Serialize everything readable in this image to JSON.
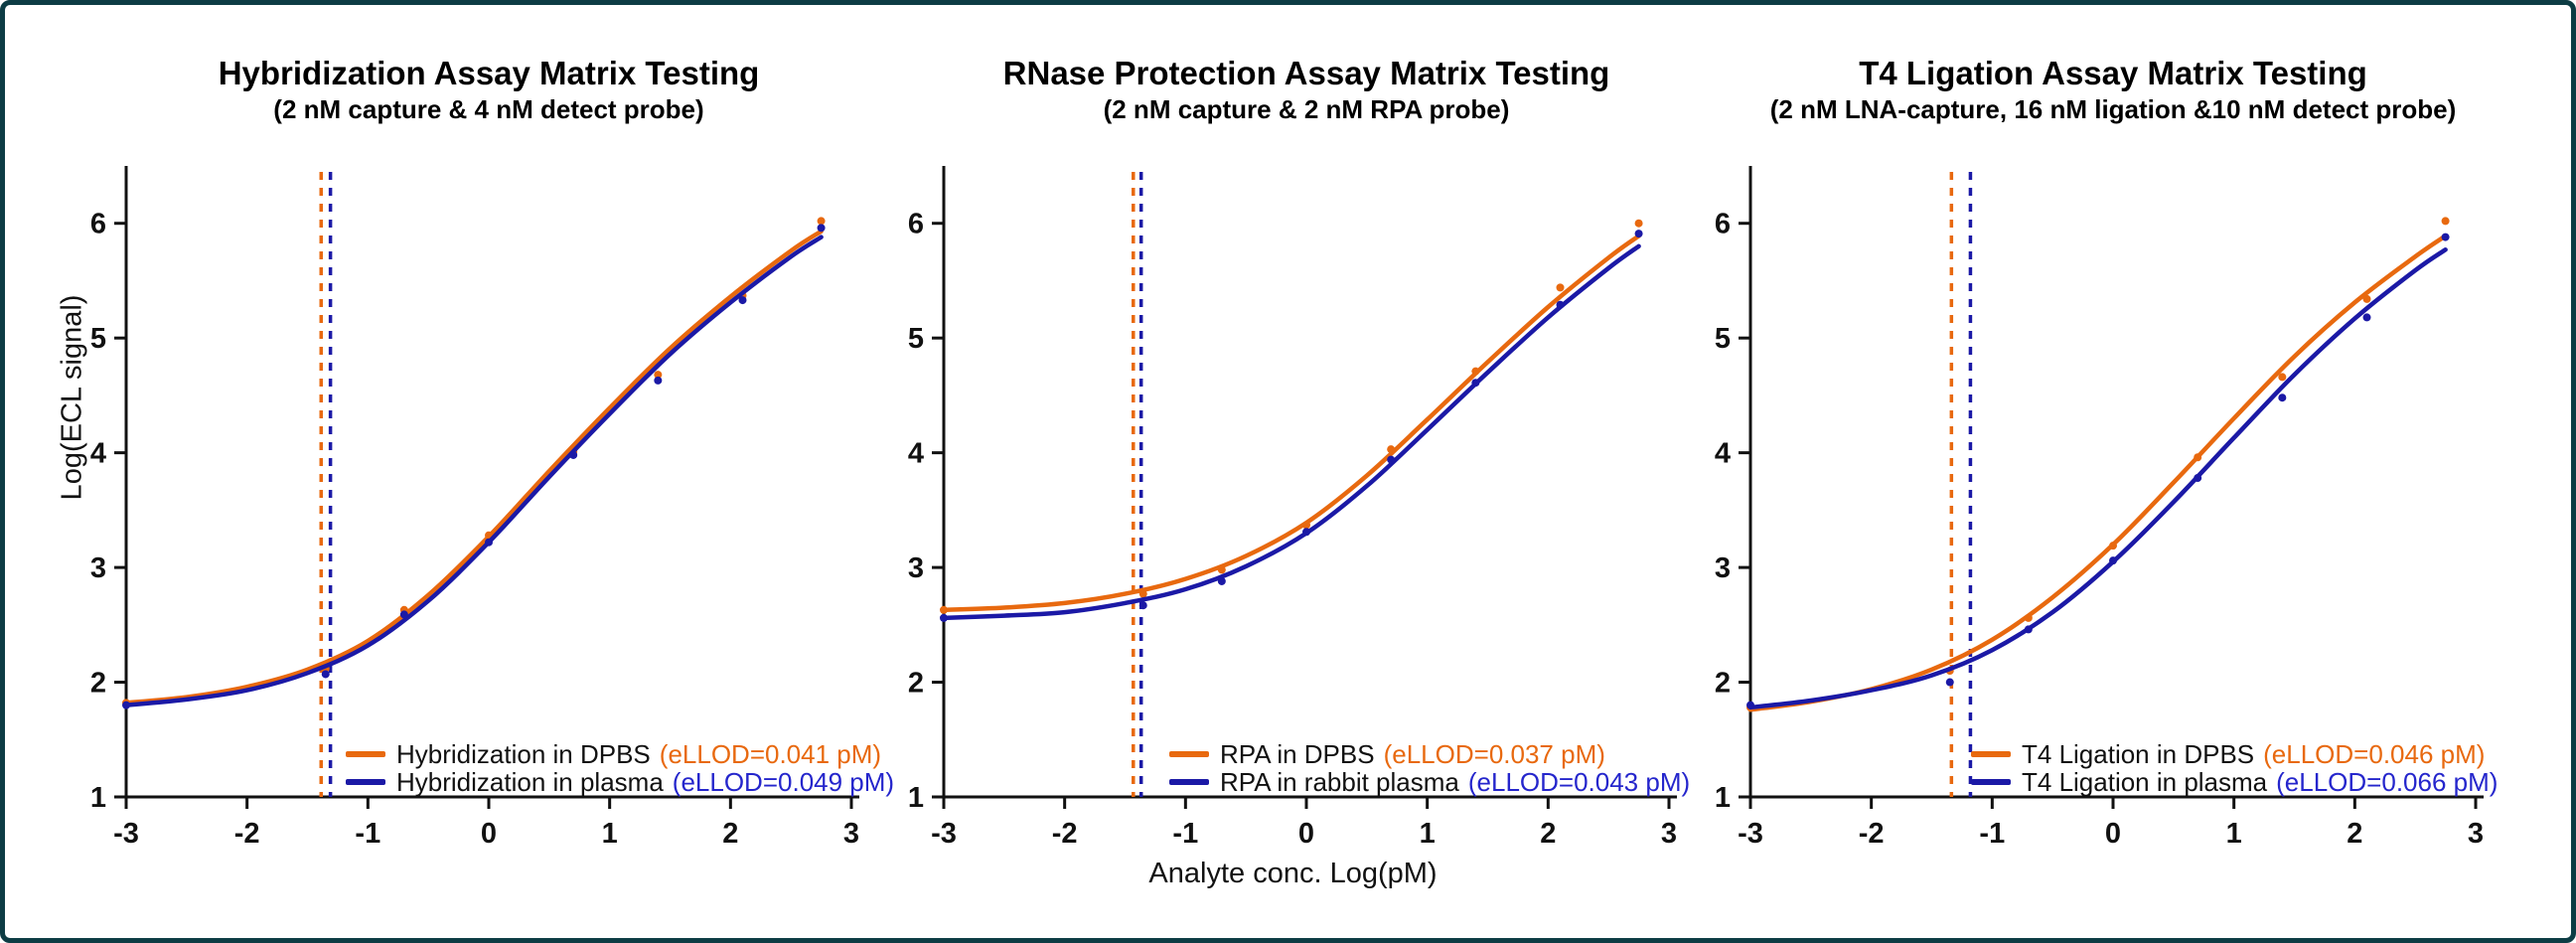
{
  "figure": {
    "border_color": "#0d3c44",
    "background": "#ffffff"
  },
  "colors": {
    "dpbs": "#E8690F",
    "plasma": "#1B19A6",
    "dpbs_text": "#E8690F",
    "plasma_text": "#2526CC",
    "axis": "#111111"
  },
  "axes": {
    "x_label": "Analyte conc. Log(pM)",
    "y_label": "Log(ECL signal)",
    "x_ticks": [
      -3,
      -2,
      -1,
      0,
      1,
      2,
      3
    ],
    "y_ticks": [
      1,
      2,
      3,
      4,
      5,
      6
    ],
    "x_range": [
      -3,
      3
    ],
    "y_range": [
      1,
      6.5
    ],
    "grid": false
  },
  "chart_data": [
    {
      "type": "line",
      "title": "Hybridization Assay Matrix Testing",
      "subtitle": "(2 nM capture & 4 nM detect probe)",
      "legend_position": "inside-bottom",
      "series": [
        {
          "name": "Hybridization in DPBS",
          "ellod_label": "(eLLOD=0.041 pM)",
          "ellod_pm": 0.041,
          "llod_log": -1.387,
          "color": "dpbs",
          "text_color": "dpbs_text",
          "scatter_x": [
            -3,
            -1.35,
            -0.7,
            0,
            0.7,
            1.4,
            2.1,
            2.75
          ],
          "scatter_y": [
            1.82,
            2.12,
            2.63,
            3.28,
            4.01,
            4.68,
            5.37,
            6.02
          ],
          "curve_x": [
            -3,
            -2.5,
            -2,
            -1.5,
            -1,
            -0.5,
            0,
            0.5,
            1,
            1.5,
            2,
            2.5,
            2.75
          ],
          "curve_y": [
            1.82,
            1.87,
            1.96,
            2.11,
            2.36,
            2.76,
            3.27,
            3.84,
            4.39,
            4.91,
            5.36,
            5.76,
            5.93
          ]
        },
        {
          "name": "Hybridization in plasma",
          "ellod_label": "(eLLOD=0.049 pM)",
          "ellod_pm": 0.049,
          "llod_log": -1.31,
          "color": "plasma",
          "text_color": "plasma_text",
          "scatter_x": [
            -3,
            -1.35,
            -0.7,
            0,
            0.7,
            1.4,
            2.1,
            2.75
          ],
          "scatter_y": [
            1.8,
            2.07,
            2.59,
            3.22,
            3.98,
            4.63,
            5.33,
            5.96
          ],
          "curve_x": [
            -3,
            -2.5,
            -2,
            -1.5,
            -1,
            -0.5,
            0,
            0.5,
            1,
            1.5,
            2,
            2.5,
            2.75
          ],
          "curve_y": [
            1.8,
            1.85,
            1.93,
            2.08,
            2.32,
            2.71,
            3.22,
            3.79,
            4.34,
            4.86,
            5.31,
            5.71,
            5.88
          ]
        }
      ]
    },
    {
      "type": "line",
      "title": "RNase Protection Assay Matrix Testing",
      "subtitle": "(2 nM capture & 2 nM RPA probe)",
      "legend_position": "inside-bottom",
      "series": [
        {
          "name": "RPA in DPBS",
          "ellod_label": "(eLLOD=0.037 pM)",
          "ellod_pm": 0.037,
          "llod_log": -1.432,
          "color": "dpbs",
          "text_color": "dpbs_text",
          "scatter_x": [
            -3,
            -1.35,
            -0.7,
            0,
            0.7,
            1.4,
            2.1,
            2.75
          ],
          "scatter_y": [
            2.63,
            2.77,
            2.98,
            3.37,
            4.03,
            4.71,
            5.44,
            6.0
          ],
          "curve_x": [
            -3,
            -2.5,
            -2,
            -1.5,
            -1,
            -0.5,
            0,
            0.5,
            1,
            1.5,
            2,
            2.5,
            2.75
          ],
          "curve_y": [
            2.63,
            2.65,
            2.69,
            2.77,
            2.9,
            3.1,
            3.39,
            3.8,
            4.29,
            4.79,
            5.27,
            5.7,
            5.89
          ]
        },
        {
          "name": "RPA in rabbit plasma",
          "ellod_label": "(eLLOD=0.043 pM)",
          "ellod_pm": 0.043,
          "llod_log": -1.367,
          "color": "plasma",
          "text_color": "plasma_text",
          "scatter_x": [
            -3,
            -1.35,
            -0.7,
            0,
            0.7,
            1.4,
            2.1,
            2.75
          ],
          "scatter_y": [
            2.56,
            2.67,
            2.88,
            3.31,
            3.94,
            4.61,
            5.29,
            5.91
          ],
          "curve_x": [
            -3,
            -2.5,
            -2,
            -1.5,
            -1,
            -0.5,
            0,
            0.5,
            1,
            1.5,
            2,
            2.5,
            2.75
          ],
          "curve_y": [
            2.56,
            2.58,
            2.61,
            2.69,
            2.81,
            3.01,
            3.3,
            3.71,
            4.2,
            4.7,
            5.18,
            5.61,
            5.8
          ]
        }
      ]
    },
    {
      "type": "line",
      "title": "T4 Ligation Assay Matrix Testing",
      "subtitle": "(2 nM LNA-capture, 16 nM ligation &10 nM detect probe)",
      "legend_position": "inside-bottom",
      "series": [
        {
          "name": "T4 Ligation in DPBS",
          "ellod_label": "(eLLOD=0.046 pM)",
          "ellod_pm": 0.046,
          "llod_log": -1.337,
          "color": "dpbs",
          "text_color": "dpbs_text",
          "scatter_x": [
            -3,
            -1.35,
            -0.7,
            0,
            0.7,
            1.4,
            2.1,
            2.75
          ],
          "scatter_y": [
            1.78,
            2.1,
            2.56,
            3.19,
            3.96,
            4.66,
            5.34,
            6.02
          ],
          "curve_x": [
            -3,
            -2.5,
            -2,
            -1.5,
            -1,
            -0.5,
            0,
            0.5,
            1,
            1.5,
            2,
            2.5,
            2.75
          ],
          "curve_y": [
            1.76,
            1.83,
            1.94,
            2.11,
            2.37,
            2.74,
            3.2,
            3.74,
            4.3,
            4.84,
            5.31,
            5.71,
            5.89
          ]
        },
        {
          "name": "T4 Ligation in plasma",
          "ellod_label": "(eLLOD=0.066 pM)",
          "ellod_pm": 0.066,
          "llod_log": -1.18,
          "color": "plasma",
          "text_color": "plasma_text",
          "scatter_x": [
            -3,
            -1.35,
            -0.7,
            0,
            0.7,
            1.4,
            2.1,
            2.75
          ],
          "scatter_y": [
            1.8,
            2.0,
            2.46,
            3.06,
            3.78,
            4.48,
            5.18,
            5.88
          ],
          "curve_x": [
            -3,
            -2.5,
            -2,
            -1.5,
            -1,
            -0.5,
            0,
            0.5,
            1,
            1.5,
            2,
            2.5,
            2.75
          ],
          "curve_y": [
            1.78,
            1.84,
            1.93,
            2.06,
            2.28,
            2.61,
            3.05,
            3.57,
            4.13,
            4.68,
            5.17,
            5.59,
            5.77
          ]
        }
      ]
    }
  ]
}
